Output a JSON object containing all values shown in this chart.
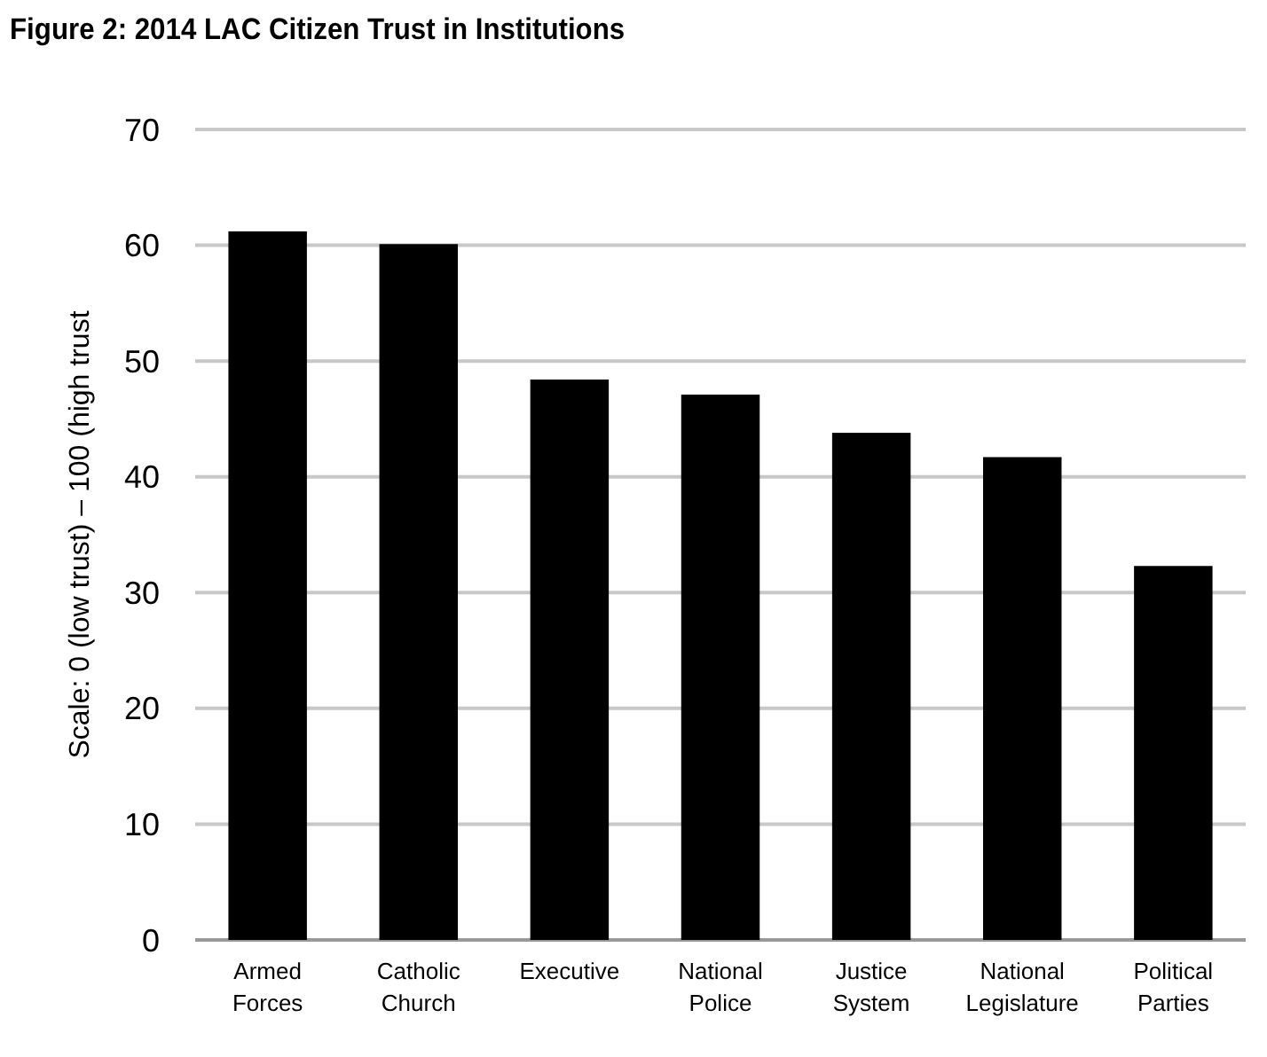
{
  "chart_data": {
    "type": "bar",
    "title": "Figure 2: 2014 LAC Citizen Trust in Institutions",
    "ylabel": "Scale: 0 (low trust) – 100 (high trust",
    "categories": [
      "Armed Forces",
      "Catholic Church",
      "Executive",
      "National Police",
      "Justice System",
      "National Legislature",
      "Political Parties"
    ],
    "values": [
      61.2,
      60.1,
      48.4,
      47.1,
      43.8,
      41.7,
      32.3
    ],
    "color": "#000000",
    "ylim": [
      0,
      70
    ],
    "yticks": [
      0,
      10,
      20,
      30,
      40,
      50,
      60,
      70
    ],
    "grid": "y"
  }
}
